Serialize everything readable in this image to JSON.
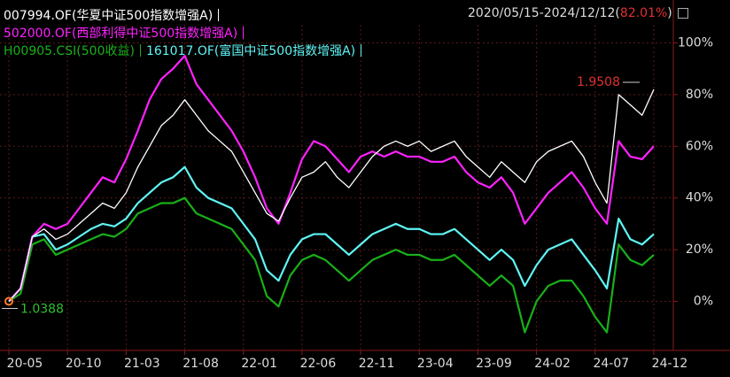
{
  "chart_data": {
    "type": "line",
    "period": "2020/05/15-2024/12/12(",
    "return": "82.01%",
    "period_end": ")",
    "x": [
      "20-05",
      "20-06",
      "20-07",
      "20-08",
      "20-09",
      "20-10",
      "20-11",
      "20-12",
      "21-01",
      "21-02",
      "21-03",
      "21-04",
      "21-05",
      "21-06",
      "21-07",
      "21-08",
      "21-09",
      "21-10",
      "21-11",
      "21-12",
      "22-01",
      "22-02",
      "22-03",
      "22-04",
      "22-05",
      "22-06",
      "22-07",
      "22-08",
      "22-09",
      "22-10",
      "22-11",
      "22-12",
      "23-01",
      "23-02",
      "23-03",
      "23-04",
      "23-05",
      "23-06",
      "23-07",
      "23-08",
      "23-09",
      "23-10",
      "23-11",
      "23-12",
      "24-01",
      "24-02",
      "24-03",
      "24-04",
      "24-05",
      "24-06",
      "24-07",
      "24-08",
      "24-09",
      "24-10",
      "24-11",
      "24-12"
    ],
    "xticks": [
      "20-05",
      "20-10",
      "21-03",
      "21-08",
      "22-01",
      "22-06",
      "22-11",
      "23-04",
      "23-09",
      "24-02",
      "24-07",
      "24-12"
    ],
    "series": [
      {
        "name": "007994.OF(华夏中证500指数增强A)",
        "color": "#ffffff",
        "values": [
          0,
          5,
          25,
          28,
          24,
          26,
          30,
          34,
          38,
          36,
          42,
          52,
          60,
          68,
          72,
          78,
          72,
          66,
          62,
          58,
          50,
          42,
          34,
          31,
          40,
          48,
          50,
          54,
          48,
          44,
          50,
          56,
          60,
          62,
          60,
          62,
          58,
          60,
          62,
          56,
          52,
          48,
          54,
          50,
          46,
          54,
          58,
          60,
          62,
          56,
          46,
          38,
          80,
          76,
          72,
          82
        ]
      },
      {
        "name": "502000.OF(西部利得中证500指数增强A)",
        "color": "#ff22ff",
        "values": [
          0,
          5,
          25,
          30,
          28,
          30,
          36,
          42,
          48,
          46,
          55,
          66,
          78,
          86,
          90,
          95,
          84,
          78,
          72,
          66,
          58,
          48,
          36,
          30,
          42,
          55,
          62,
          60,
          55,
          50,
          56,
          58,
          56,
          58,
          56,
          56,
          54,
          54,
          56,
          50,
          46,
          44,
          48,
          42,
          30,
          36,
          42,
          46,
          50,
          44,
          36,
          30,
          62,
          56,
          55,
          60
        ]
      },
      {
        "name": "H00905.CSI(500收益)",
        "color": "#18b018",
        "values": [
          0,
          3,
          22,
          24,
          18,
          20,
          22,
          24,
          26,
          25,
          28,
          34,
          36,
          38,
          38,
          40,
          34,
          32,
          30,
          28,
          22,
          16,
          2,
          -2,
          10,
          16,
          18,
          16,
          12,
          8,
          12,
          16,
          18,
          20,
          18,
          18,
          16,
          16,
          18,
          14,
          10,
          6,
          10,
          6,
          -12,
          0,
          6,
          8,
          8,
          2,
          -6,
          -12,
          22,
          16,
          14,
          18
        ]
      },
      {
        "name": "161017.OF(富国中证500指数增强A)",
        "color": "#5ff5f5",
        "values": [
          0,
          5,
          25,
          26,
          20,
          22,
          25,
          28,
          30,
          29,
          32,
          38,
          42,
          46,
          48,
          52,
          44,
          40,
          38,
          36,
          30,
          24,
          12,
          8,
          18,
          24,
          26,
          26,
          22,
          18,
          22,
          26,
          28,
          30,
          28,
          28,
          26,
          26,
          28,
          24,
          20,
          16,
          20,
          16,
          6,
          14,
          20,
          22,
          24,
          18,
          12,
          5,
          32,
          24,
          22,
          26
        ]
      }
    ],
    "ylim": [
      -19,
      107
    ],
    "yticks": [
      {
        "value": 0,
        "label": "0%"
      },
      {
        "value": 20,
        "label": "20%"
      },
      {
        "value": 40,
        "label": "40%"
      },
      {
        "value": 60,
        "label": "60%"
      },
      {
        "value": 80,
        "label": "80%"
      },
      {
        "value": 100,
        "label": "100%"
      }
    ],
    "grid": true,
    "annotations": [
      {
        "text": "1.9508",
        "color": "#e03030"
      },
      {
        "text": "1.0388",
        "color": "#30c030"
      }
    ]
  }
}
